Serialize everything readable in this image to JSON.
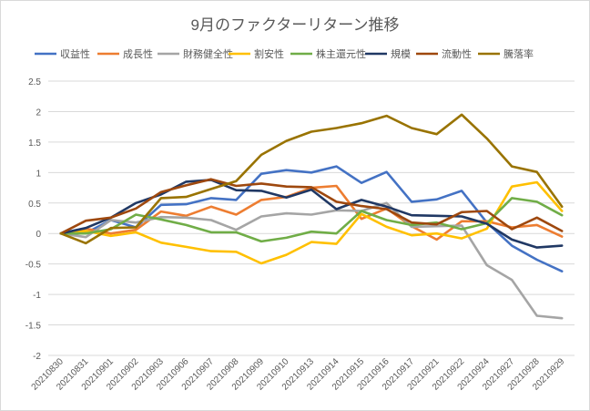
{
  "chart_data": {
    "type": "line",
    "title": "9月のファクターリターン推移",
    "xlabel": "",
    "ylabel": "",
    "ylim": [
      -2,
      2.5
    ],
    "yticks": [
      -2,
      -1.5,
      -1,
      -0.5,
      0,
      0.5,
      1,
      1.5,
      2,
      2.5
    ],
    "ytick_labels": [
      "-2",
      "-1.5",
      "-1",
      "-0.5",
      "0",
      "0.5",
      "1",
      "1.5",
      "2",
      "2.5"
    ],
    "grid": true,
    "legend_position": "top",
    "categories": [
      "20210830",
      "20210831",
      "20210901",
      "20210902",
      "20210903",
      "20210906",
      "20210907",
      "20210908",
      "20210909",
      "20210910",
      "20210913",
      "20210914",
      "20210915",
      "20210916",
      "20210917",
      "20210921",
      "20210922",
      "20210924",
      "20210927",
      "20210928",
      "20210929"
    ],
    "series": [
      {
        "name": "収益性",
        "color": "#4472C4",
        "values": [
          0,
          0.01,
          0.22,
          0.1,
          0.47,
          0.48,
          0.58,
          0.55,
          0.98,
          1.04,
          1.0,
          1.1,
          0.83,
          1.01,
          0.52,
          0.56,
          0.7,
          0.18,
          -0.2,
          -0.43,
          -0.62
        ]
      },
      {
        "name": "成長性",
        "color": "#ED7D31",
        "values": [
          0,
          0.08,
          0.0,
          0.06,
          0.36,
          0.29,
          0.44,
          0.31,
          0.55,
          0.6,
          0.75,
          0.78,
          0.24,
          0.41,
          0.12,
          -0.1,
          0.2,
          0.2,
          0.1,
          0.14,
          -0.05
        ]
      },
      {
        "name": "財務健全性",
        "color": "#A5A5A5",
        "values": [
          0,
          -0.06,
          0.22,
          0.18,
          0.27,
          0.26,
          0.22,
          0.06,
          0.28,
          0.33,
          0.31,
          0.38,
          0.37,
          0.5,
          0.11,
          0.12,
          0.13,
          -0.52,
          -0.76,
          -1.35,
          -1.39
        ]
      },
      {
        "name": "割安性",
        "color": "#FFC000",
        "values": [
          0,
          0.04,
          -0.04,
          0.02,
          -0.15,
          -0.22,
          -0.29,
          -0.3,
          -0.49,
          -0.35,
          -0.14,
          -0.17,
          0.32,
          0.11,
          -0.03,
          0.0,
          -0.08,
          0.08,
          0.77,
          0.84,
          0.37
        ]
      },
      {
        "name": "株主還元性",
        "color": "#70AD47",
        "values": [
          0,
          0.0,
          0.07,
          0.31,
          0.23,
          0.14,
          0.02,
          0.02,
          -0.13,
          -0.07,
          0.03,
          0.0,
          0.37,
          0.22,
          0.14,
          0.18,
          0.07,
          0.17,
          0.58,
          0.52,
          0.3
        ]
      },
      {
        "name": "規模",
        "color": "#203864",
        "values": [
          0,
          0.09,
          0.26,
          0.5,
          0.64,
          0.85,
          0.88,
          0.71,
          0.7,
          0.59,
          0.72,
          0.4,
          0.55,
          0.44,
          0.3,
          0.29,
          0.28,
          0.16,
          -0.1,
          -0.23,
          -0.2
        ]
      },
      {
        "name": "流動性",
        "color": "#9E480E",
        "values": [
          0,
          0.21,
          0.26,
          0.41,
          0.68,
          0.79,
          0.89,
          0.78,
          0.82,
          0.77,
          0.76,
          0.52,
          0.45,
          0.4,
          0.18,
          0.15,
          0.35,
          0.37,
          0.07,
          0.26,
          0.04
        ]
      },
      {
        "name": "騰落率",
        "color": "#997300",
        "values": [
          0,
          -0.16,
          0.09,
          0.1,
          0.58,
          0.6,
          0.73,
          0.86,
          1.29,
          1.52,
          1.67,
          1.73,
          1.81,
          1.93,
          1.73,
          1.63,
          1.95,
          1.56,
          1.1,
          1.01,
          0.44
        ]
      }
    ]
  }
}
